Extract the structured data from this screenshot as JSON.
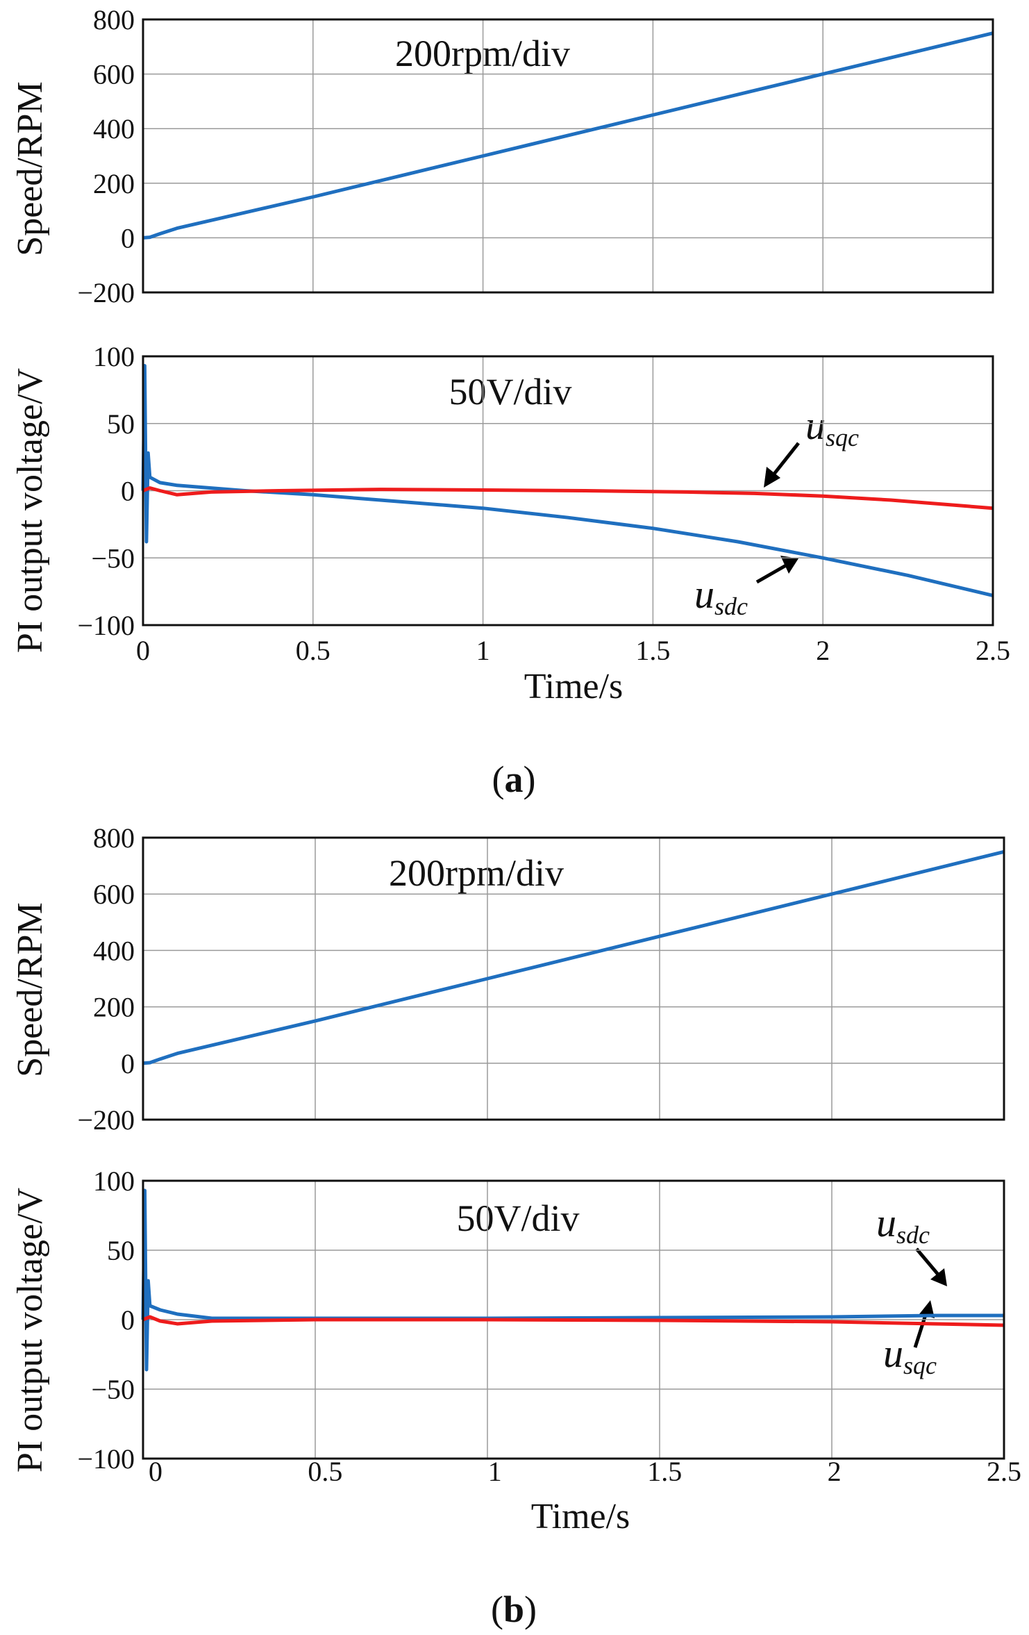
{
  "colors": {
    "blue": "#1f6fbf",
    "red": "#ee1c1c",
    "grid": "#9a9a9a",
    "frame": "#111111"
  },
  "panels": [
    {
      "letter": "a",
      "label_open": "(",
      "label_close": ")"
    },
    {
      "letter": "b",
      "label_open": "(",
      "label_close": ")"
    }
  ],
  "chart_data": [
    {
      "id": "a-speed",
      "type": "line",
      "ylabel": "Speed/RPM",
      "annotation": "200rpm/div",
      "xlim": [
        0,
        2.5
      ],
      "ylim": [
        -200,
        800
      ],
      "xticks": [
        0,
        0.5,
        1,
        1.5,
        2,
        2.5
      ],
      "yticks": [
        -200,
        0,
        200,
        400,
        600,
        800
      ],
      "ytick_labels": [
        "−200",
        "0",
        "200",
        "400",
        "600",
        "800"
      ],
      "series": [
        {
          "name": "speed",
          "color": "blue",
          "x": [
            0,
            0.02,
            0.05,
            0.1,
            0.5,
            1,
            1.5,
            2,
            2.5
          ],
          "y": [
            0,
            2,
            15,
            35,
            150,
            300,
            450,
            600,
            750
          ]
        }
      ]
    },
    {
      "id": "a-voltage",
      "type": "line",
      "ylabel": "PI output voltage/V",
      "xlabel": "Time/s",
      "annotation": "50V/div",
      "xlim": [
        0,
        2.5
      ],
      "ylim": [
        -100,
        100
      ],
      "xticks": [
        0,
        0.5,
        1,
        1.5,
        2,
        2.5
      ],
      "xtick_labels": [
        "0",
        "0.5",
        "1",
        "1.5",
        "2",
        "2.5"
      ],
      "yticks": [
        -100,
        -50,
        0,
        50,
        100
      ],
      "ytick_labels": [
        "−100",
        "−50",
        "0",
        "50",
        "100"
      ],
      "series": [
        {
          "name": "u_sdc",
          "color": "blue",
          "x": [
            0,
            0.005,
            0.01,
            0.015,
            0.02,
            0.05,
            0.1,
            0.2,
            0.3,
            0.5,
            0.75,
            1,
            1.25,
            1.5,
            1.75,
            2,
            2.25,
            2.5
          ],
          "y": [
            0,
            93,
            -38,
            28,
            10,
            6,
            4,
            2,
            0,
            -3,
            -8,
            -13,
            -20,
            -28,
            -38,
            -50,
            -63,
            -78
          ]
        },
        {
          "name": "u_sqc",
          "color": "red",
          "x": [
            0,
            0.02,
            0.05,
            0.1,
            0.2,
            0.4,
            0.7,
            1,
            1.3,
            1.6,
            1.8,
            2,
            2.2,
            2.5
          ],
          "y": [
            0,
            2,
            0,
            -3,
            -1,
            0,
            1,
            0.5,
            0,
            -1,
            -2,
            -4,
            -7,
            -13
          ]
        }
      ],
      "labels": [
        {
          "series": "u_sqc",
          "main": "u",
          "sub": "sqc"
        },
        {
          "series": "u_sdc",
          "main": "u",
          "sub": "sdc"
        }
      ]
    },
    {
      "id": "b-speed",
      "type": "line",
      "ylabel": "Speed/RPM",
      "annotation": "200rpm/div",
      "xlim": [
        0,
        2.5
      ],
      "ylim": [
        -200,
        800
      ],
      "xticks": [
        0,
        0.5,
        1,
        1.5,
        2,
        2.5
      ],
      "yticks": [
        -200,
        0,
        200,
        400,
        600,
        800
      ],
      "ytick_labels": [
        "−200",
        "0",
        "200",
        "400",
        "600",
        "800"
      ],
      "series": [
        {
          "name": "speed",
          "color": "blue",
          "x": [
            0,
            0.02,
            0.05,
            0.1,
            0.5,
            1,
            1.5,
            2,
            2.5
          ],
          "y": [
            0,
            2,
            15,
            35,
            150,
            300,
            450,
            600,
            750
          ]
        }
      ]
    },
    {
      "id": "b-voltage",
      "type": "line",
      "ylabel": "PI output voltage/V",
      "xlabel": "Time/s",
      "annotation": "50V/div",
      "xlim": [
        0,
        2.5
      ],
      "ylim": [
        -100,
        100
      ],
      "xticks": [
        0,
        0.5,
        1,
        1.5,
        2,
        2.5
      ],
      "xtick_labels": [
        "0",
        "0.5",
        "1",
        "1.5",
        "2",
        "2.5"
      ],
      "yticks": [
        -100,
        -50,
        0,
        50,
        100
      ],
      "ytick_labels": [
        "−100",
        "−50",
        "0",
        "50",
        "100"
      ],
      "series": [
        {
          "name": "u_sdc",
          "color": "blue",
          "x": [
            0,
            0.005,
            0.01,
            0.015,
            0.02,
            0.05,
            0.1,
            0.2,
            0.5,
            1,
            1.5,
            2,
            2.3,
            2.5
          ],
          "y": [
            0,
            93,
            -36,
            28,
            10,
            7,
            4,
            1,
            1,
            1,
            1.5,
            2,
            3,
            3
          ]
        },
        {
          "name": "u_sqc",
          "color": "red",
          "x": [
            0,
            0.02,
            0.05,
            0.1,
            0.2,
            0.5,
            1,
            1.5,
            2,
            2.3,
            2.5
          ],
          "y": [
            0,
            2,
            -1,
            -3,
            -1,
            0,
            0,
            -0.5,
            -1.5,
            -3,
            -4
          ]
        }
      ],
      "labels": [
        {
          "series": "u_sdc",
          "main": "u",
          "sub": "sdc"
        },
        {
          "series": "u_sqc",
          "main": "u",
          "sub": "sqc"
        }
      ]
    }
  ]
}
